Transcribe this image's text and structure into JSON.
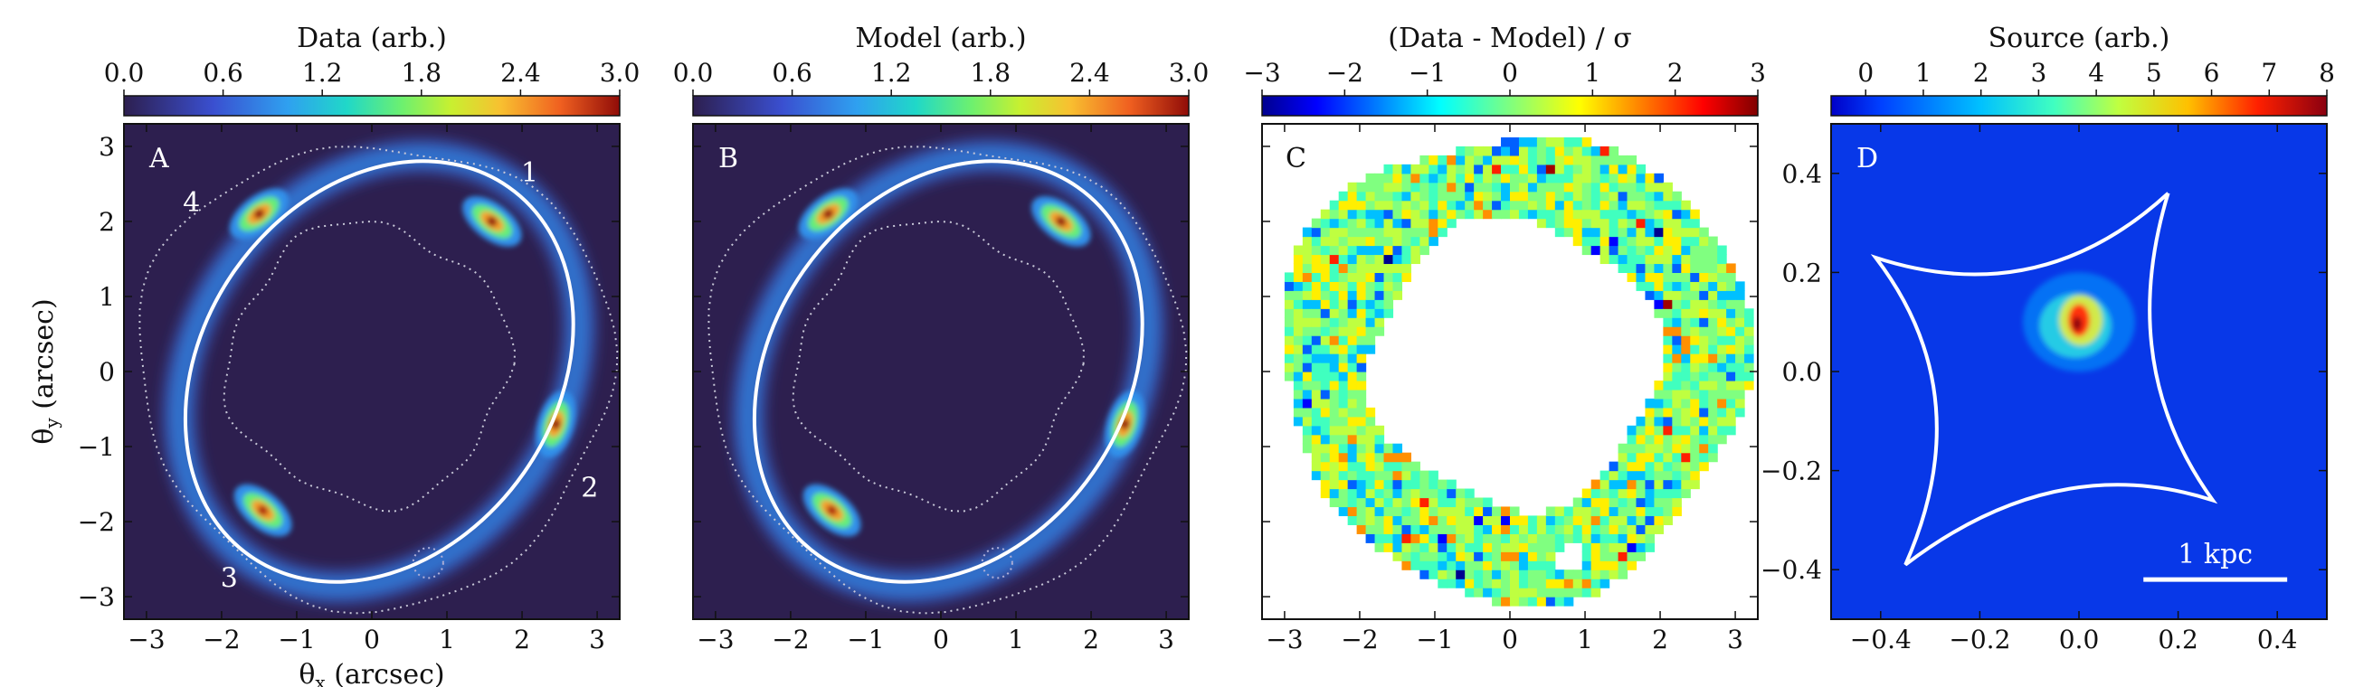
{
  "chart_data": [
    {
      "type": "heatmap",
      "panel": "A",
      "colorbar_title": "Data (arb.)",
      "colorbar_ticks": [
        "0.0",
        "0.6",
        "1.2",
        "1.8",
        "2.4",
        "3.0"
      ],
      "colorbar_range": [
        0,
        3.0
      ],
      "colormap": "turbo",
      "xlabel": "θx (arcsec)",
      "ylabel": "θy (arcsec)",
      "xlim": [
        -3.3,
        3.3
      ],
      "ylim": [
        -3.3,
        3.3
      ],
      "xticks": [
        "−3",
        "−2",
        "−1",
        "0",
        "1",
        "2",
        "3"
      ],
      "yticks": [
        "−3",
        "−2",
        "−1",
        "0",
        "1",
        "2",
        "3"
      ],
      "image_labels": [
        {
          "text": "1",
          "x": 2.1,
          "y": 2.65
        },
        {
          "text": "2",
          "x": 2.9,
          "y": -1.55
        },
        {
          "text": "3",
          "x": -1.9,
          "y": -2.75
        },
        {
          "text": "4",
          "x": -2.4,
          "y": 2.25
        }
      ],
      "lensed_images": [
        {
          "x": 1.6,
          "y": 2.0,
          "peak": 3.0
        },
        {
          "x": 2.45,
          "y": -0.7,
          "peak": 3.0
        },
        {
          "x": -1.45,
          "y": -1.85,
          "peak": 2.9
        },
        {
          "x": -1.5,
          "y": 2.1,
          "peak": 3.0
        }
      ],
      "critical_curve": {
        "cx": 0.1,
        "cy": 0.0,
        "a": 3.0,
        "b": 2.35,
        "angle_deg": 55
      },
      "mask_contours": "dotted"
    },
    {
      "type": "heatmap",
      "panel": "B",
      "colorbar_title": "Model (arb.)",
      "colorbar_ticks": [
        "0.0",
        "0.6",
        "1.2",
        "1.8",
        "2.4",
        "3.0"
      ],
      "colorbar_range": [
        0,
        3.0
      ],
      "colormap": "turbo",
      "xlim": [
        -3.3,
        3.3
      ],
      "ylim": [
        -3.3,
        3.3
      ],
      "xticks": [
        "−3",
        "−2",
        "−1",
        "0",
        "1",
        "2",
        "3"
      ],
      "lensed_images": [
        {
          "x": 1.6,
          "y": 2.0,
          "peak": 3.0
        },
        {
          "x": 2.45,
          "y": -0.7,
          "peak": 3.0
        },
        {
          "x": -1.45,
          "y": -1.85,
          "peak": 2.9
        },
        {
          "x": -1.5,
          "y": 2.1,
          "peak": 3.0
        }
      ],
      "critical_curve": {
        "cx": 0.1,
        "cy": 0.0,
        "a": 3.0,
        "b": 2.35,
        "angle_deg": 55
      }
    },
    {
      "type": "heatmap",
      "panel": "C",
      "colorbar_title": "(Data - Model) / σ",
      "colorbar_ticks": [
        "−3",
        "−2",
        "−1",
        "0",
        "1",
        "2",
        "3"
      ],
      "colorbar_range": [
        -3,
        3
      ],
      "colormap": "jet",
      "xlim": [
        -3.3,
        3.3
      ],
      "ylim": [
        -3.3,
        3.3
      ],
      "xticks": [
        "−3",
        "−2",
        "−1",
        "0",
        "1",
        "2",
        "3"
      ],
      "residual_annulus": {
        "inner_radius": 1.9,
        "outer_radius": 3.1
      }
    },
    {
      "type": "heatmap",
      "panel": "D",
      "colorbar_title": "Source (arb.)",
      "colorbar_ticks": [
        "0",
        "1",
        "2",
        "3",
        "4",
        "5",
        "6",
        "7",
        "8"
      ],
      "colorbar_range": [
        -0.6,
        8.0
      ],
      "colormap": "jet",
      "xlim": [
        -0.5,
        0.5
      ],
      "ylim": [
        -0.5,
        0.5
      ],
      "xticks": [
        "−0.4",
        "−0.2",
        "0.0",
        "0.2",
        "0.4"
      ],
      "yticks": [
        "−0.4",
        "−0.2",
        "0.0",
        "0.2",
        "0.4"
      ],
      "caustic_cusps": [
        [
          0.18,
          0.36
        ],
        [
          -0.41,
          0.23
        ],
        [
          -0.35,
          -0.39
        ],
        [
          0.27,
          -0.26
        ]
      ],
      "source_center": [
        0.0,
        0.1
      ],
      "scalebar_label": "1 kpc"
    }
  ],
  "panel_letters": {
    "a": "A",
    "b": "B",
    "c": "C",
    "d": "D"
  }
}
